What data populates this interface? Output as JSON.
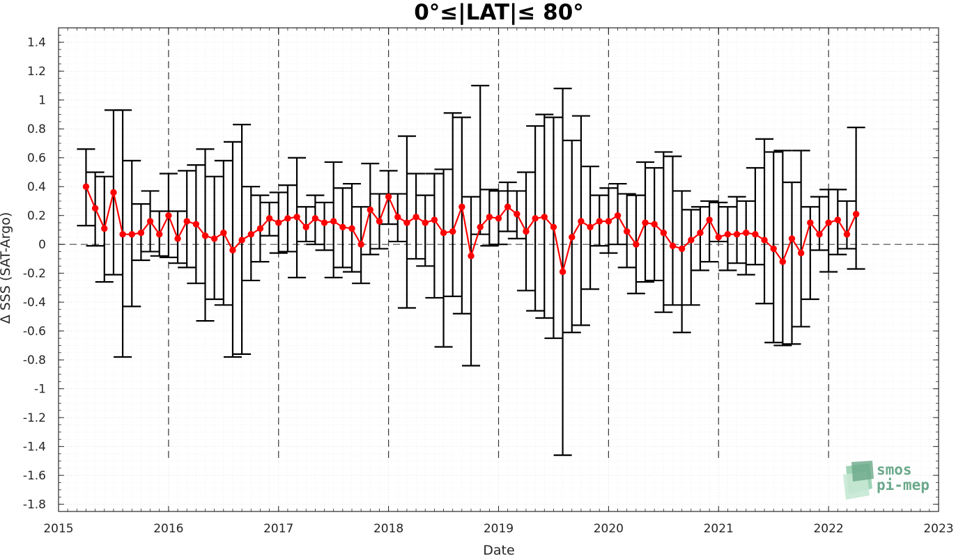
{
  "chart_data": {
    "type": "scatter",
    "title": "0°≤|LAT|≤ 80°",
    "xlabel": "Date",
    "ylabel": "Δ SSS (SAT-Argo)",
    "xlim": [
      "2015",
      "2023"
    ],
    "ylim": [
      -1.85,
      1.5
    ],
    "x_ticks": [
      "2015",
      "2016",
      "2017",
      "2018",
      "2019",
      "2020",
      "2021",
      "2022",
      "2023"
    ],
    "y_ticks": [
      "-1.8",
      "-1.6",
      "-1.4",
      "-1.2",
      "-1",
      "-0.8",
      "-0.6",
      "-0.4",
      "-0.2",
      "0",
      "0.2",
      "0.4",
      "0.6",
      "0.8",
      "1",
      "1.2",
      "1.4"
    ],
    "grid": true,
    "year_separators": [
      "2016",
      "2017",
      "2018",
      "2019",
      "2020",
      "2021",
      "2022"
    ],
    "zero_line": 0,
    "series": [
      {
        "color": "#ff0000",
        "x": [
          "2015-04",
          "2015-05",
          "2015-06",
          "2015-07",
          "2015-08",
          "2015-09",
          "2015-10",
          "2015-11",
          "2015-12",
          "2016-01",
          "2016-02",
          "2016-03",
          "2016-04",
          "2016-05",
          "2016-06",
          "2016-07",
          "2016-08",
          "2016-09",
          "2016-10",
          "2016-11",
          "2016-12",
          "2017-01",
          "2017-02",
          "2017-03",
          "2017-04",
          "2017-05",
          "2017-06",
          "2017-07",
          "2017-08",
          "2017-09",
          "2017-10",
          "2017-11",
          "2017-12",
          "2018-01",
          "2018-02",
          "2018-03",
          "2018-04",
          "2018-05",
          "2018-06",
          "2018-07",
          "2018-08",
          "2018-09",
          "2018-10",
          "2018-11",
          "2018-12",
          "2019-01",
          "2019-02",
          "2019-03",
          "2019-04",
          "2019-05",
          "2019-06",
          "2019-07",
          "2019-08",
          "2019-09",
          "2019-10",
          "2019-11",
          "2019-12",
          "2020-01",
          "2020-02",
          "2020-03",
          "2020-04",
          "2020-05",
          "2020-06",
          "2020-07",
          "2020-08",
          "2020-09",
          "2020-10",
          "2020-11",
          "2020-12",
          "2021-01",
          "2021-02",
          "2021-03",
          "2021-04",
          "2021-05",
          "2021-06",
          "2021-07",
          "2021-08",
          "2021-09",
          "2021-10",
          "2021-11",
          "2021-12",
          "2022-01",
          "2022-02",
          "2022-03",
          "2022-04"
        ],
        "y": [
          0.4,
          0.25,
          0.11,
          0.36,
          0.07,
          0.07,
          0.08,
          0.16,
          0.07,
          0.2,
          0.04,
          0.16,
          0.14,
          0.06,
          0.04,
          0.08,
          -0.04,
          0.03,
          0.07,
          0.11,
          0.18,
          0.15,
          0.18,
          0.19,
          0.12,
          0.18,
          0.15,
          0.16,
          0.12,
          0.11,
          0.0,
          0.24,
          0.16,
          0.33,
          0.19,
          0.15,
          0.19,
          0.15,
          0.17,
          0.08,
          0.09,
          0.26,
          -0.08,
          0.12,
          0.19,
          0.18,
          0.26,
          0.21,
          0.09,
          0.18,
          0.19,
          0.12,
          -0.19,
          0.05,
          0.16,
          0.12,
          0.16,
          0.16,
          0.2,
          0.09,
          0.0,
          0.15,
          0.14,
          0.08,
          -0.01,
          -0.03,
          0.03,
          0.08,
          0.17,
          0.05,
          0.07,
          0.07,
          0.08,
          0.07,
          0.03,
          -0.03,
          -0.12,
          0.04,
          -0.06,
          0.15,
          0.07,
          0.15,
          0.17,
          0.07,
          0.21
        ],
        "y_lower": [
          0.13,
          -0.01,
          -0.26,
          -0.21,
          -0.78,
          -0.43,
          -0.11,
          -0.05,
          -0.08,
          -0.09,
          -0.13,
          -0.16,
          -0.27,
          -0.53,
          -0.38,
          -0.42,
          -0.78,
          -0.76,
          -0.25,
          -0.12,
          0.06,
          -0.06,
          -0.05,
          -0.23,
          0.02,
          0.0,
          -0.04,
          -0.23,
          -0.16,
          -0.19,
          -0.27,
          -0.07,
          -0.03,
          0.14,
          0.02,
          -0.44,
          -0.1,
          -0.15,
          -0.37,
          -0.71,
          -0.36,
          -0.48,
          -0.84,
          0.07,
          -0.01,
          0.0,
          0.09,
          0.04,
          -0.32,
          -0.46,
          -0.51,
          -0.65,
          -1.46,
          -0.61,
          -0.56,
          -0.31,
          -0.01,
          -0.06,
          0.0,
          -0.16,
          -0.34,
          -0.26,
          -0.25,
          -0.47,
          -0.42,
          -0.61,
          -0.42,
          -0.18,
          -0.12,
          0.02,
          -0.18,
          -0.13,
          -0.21,
          -0.14,
          -0.41,
          -0.68,
          -0.7,
          -0.69,
          -0.57,
          -0.38,
          -0.04,
          -0.19,
          -0.07,
          -0.03,
          -0.17
        ],
        "y_upper": [
          0.66,
          0.5,
          0.47,
          0.93,
          0.93,
          0.58,
          0.28,
          0.37,
          0.23,
          0.49,
          0.23,
          0.51,
          0.55,
          0.66,
          0.47,
          0.58,
          0.71,
          0.83,
          0.4,
          0.34,
          0.29,
          0.36,
          0.41,
          0.6,
          0.26,
          0.34,
          0.29,
          0.57,
          0.39,
          0.42,
          0.26,
          0.56,
          0.35,
          0.51,
          0.35,
          0.75,
          0.49,
          0.34,
          0.49,
          0.52,
          0.91,
          0.88,
          0.33,
          1.1,
          0.38,
          0.37,
          0.43,
          0.37,
          0.5,
          0.82,
          0.9,
          0.88,
          1.08,
          0.72,
          0.89,
          0.54,
          0.34,
          0.39,
          0.42,
          0.35,
          0.34,
          0.57,
          0.53,
          0.64,
          0.61,
          0.37,
          0.24,
          0.26,
          0.3,
          0.29,
          0.26,
          0.33,
          0.3,
          0.53,
          0.73,
          0.64,
          0.65,
          0.43,
          0.65,
          0.26,
          0.33,
          0.38,
          0.38,
          0.3,
          0.81
        ]
      }
    ]
  },
  "logo": {
    "line1": "smos",
    "line2": "pi-mep"
  }
}
